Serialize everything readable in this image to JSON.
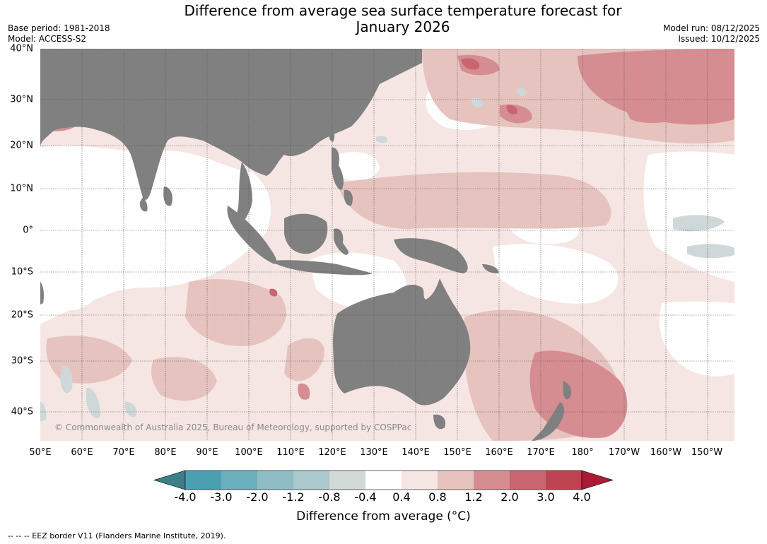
{
  "title": {
    "line1": "Difference from average sea surface temperature forecast for",
    "line2": "January 2026"
  },
  "meta_left": {
    "base_period": "Base period: 1981-2018",
    "model": "Model: ACCESS-S2"
  },
  "meta_right": {
    "model_run": "Model run: 08/12/2025",
    "issued": "Issued: 10/12/2025"
  },
  "lat_labels": [
    "40°N",
    "30°N",
    "20°N",
    "10°N",
    "0°",
    "10°S",
    "20°S",
    "30°S",
    "40°S"
  ],
  "lon_labels": [
    "50°E",
    "60°E",
    "70°E",
    "80°E",
    "90°E",
    "100°E",
    "110°E",
    "120°E",
    "130°E",
    "140°E",
    "150°E",
    "160°E",
    "170°E",
    "180°",
    "170°W",
    "160°W",
    "150°W"
  ],
  "copyright": "© Commonwealth of Australia 2025, Bureau of Meteorology, supported by COSPPac",
  "colorbar": {
    "labels": [
      "-4.0",
      "-3.0",
      "-2.0",
      "-1.2",
      "-0.8",
      "-0.4",
      "0.4",
      "0.8",
      "1.2",
      "2.0",
      "3.0",
      "4.0"
    ],
    "colors": [
      "#3d7f88",
      "#4aa0b0",
      "#6bafbc",
      "#8fbcc5",
      "#abc8cc",
      "#d3d9d9",
      "#ffffff",
      "#f5e6e4",
      "#e6c3bf",
      "#d58d92",
      "#c96570",
      "#bd4351",
      "#ab1c34"
    ],
    "title": "Difference from average (°C)"
  },
  "footnote": "--  --  -- EEZ border V11 (Flanders Marine Institute, 2019).",
  "land_color": "#808080"
}
